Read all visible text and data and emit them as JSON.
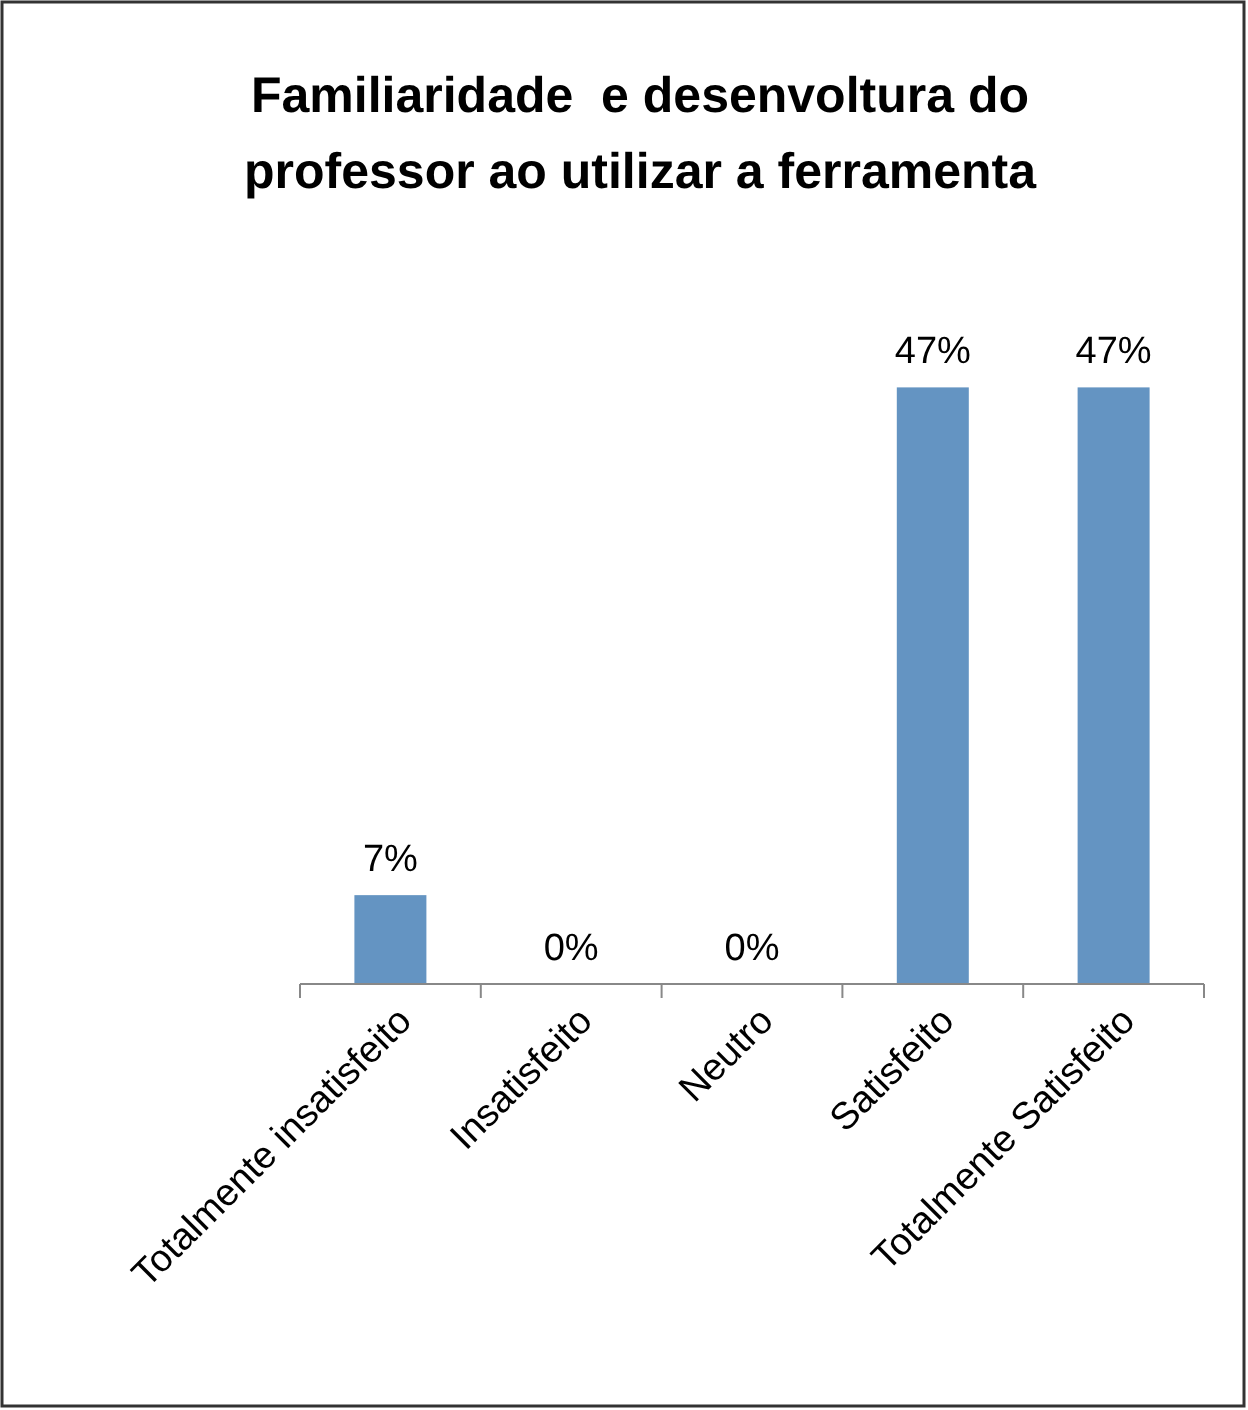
{
  "chart_data": {
    "type": "bar",
    "title": "Familiaridade  e desenvoltura do professor ao utilizar a ferramenta",
    "categories": [
      "Totalmente insatisfeito",
      "Insatisfeito",
      "Neutro",
      "Satisfeito",
      "Totalmente Satisfeito"
    ],
    "values": [
      7,
      0,
      0,
      47,
      47
    ],
    "color": "#6494c2",
    "value_labels": [
      "7%",
      "0%",
      "0%",
      "47%",
      "47%"
    ]
  }
}
